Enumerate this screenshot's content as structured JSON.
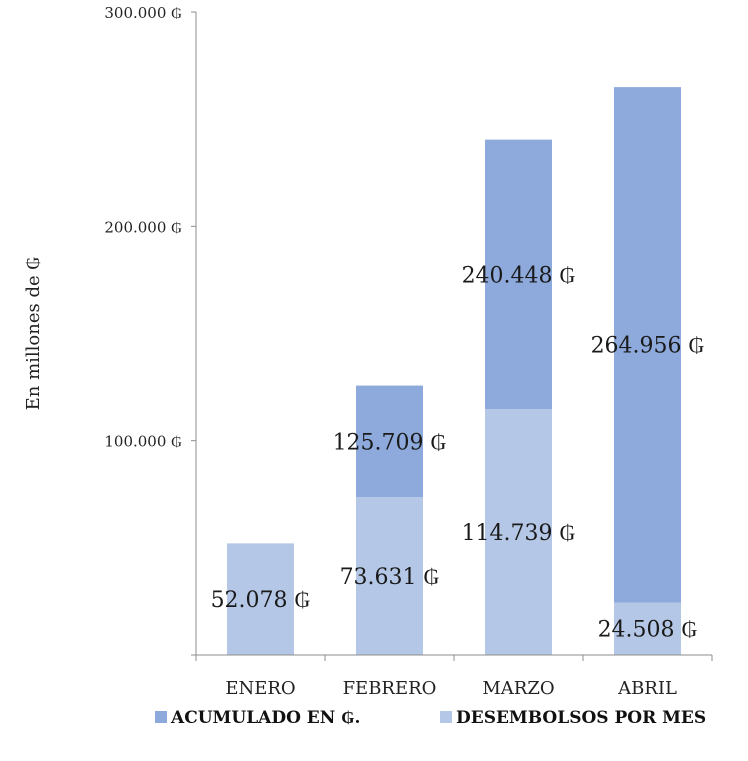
{
  "chart_data": {
    "type": "bar",
    "categories": [
      "ENERO",
      "FEBRERO",
      "MARZO",
      "ABRIL"
    ],
    "series": [
      {
        "name": "DESEMBOLSOS POR MES",
        "values": [
          52078,
          73631,
          114739,
          24508
        ],
        "labels": [
          "52.078 ₲",
          "73.631 ₲",
          "114.739 ₲",
          "24.508 ₲"
        ],
        "color": "#b5c7e6"
      },
      {
        "name": "ACUMULADO EN ₲.",
        "values": [
          0,
          52078,
          125709,
          240448
        ],
        "labels": [
          "",
          "125.709 ₲",
          "240.448 ₲",
          "264.956 ₲"
        ],
        "color": "#8eaadc"
      }
    ],
    "stacked": true,
    "ylabel": "En millones de ₲",
    "ylim": [
      0,
      300000
    ],
    "yticks": [
      0,
      100000,
      200000,
      300000
    ],
    "ytick_labels": [
      "",
      "100.000 ₲",
      "200.000 ₲",
      "300.000 ₲"
    ],
    "legend_position": "bottom",
    "grid": false
  }
}
